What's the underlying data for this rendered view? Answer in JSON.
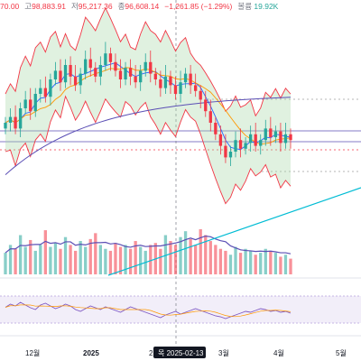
{
  "header": {
    "open_fragment": "70.00",
    "high_label": "고",
    "high": "98,883.91",
    "low_label": "저",
    "low": "95,217.36",
    "close": "96,608.14",
    "change": "−1,261.85 (−1.29%)",
    "volume_label": "볼륨",
    "volume": "19.92K"
  },
  "x_axis": {
    "labels": [
      "12월",
      "2025",
      "2",
      "3월",
      "4월",
      "5월"
    ],
    "cursor_label": "목 2025-02-13"
  },
  "colors": {
    "up": "#26a69a",
    "down": "#f23645",
    "bollinger": "#f23645",
    "bollinger_fill": "#a5d6a7",
    "ma_short": "#2962ff",
    "ma_mid": "#ff9800",
    "ma_long": "#5b4fb5",
    "trendline": "#00bcd4",
    "rsi_line": "#7e57c2"
  },
  "chart_data": {
    "type": "candlestick",
    "panes": [
      "price",
      "volume",
      "rsi"
    ],
    "price_series": [
      70,
      72,
      68,
      75,
      78,
      74,
      80,
      82,
      79,
      85,
      88,
      84,
      90,
      86,
      83,
      87,
      92,
      89,
      86,
      90,
      94,
      91,
      88,
      85,
      89,
      86,
      84,
      88,
      91,
      87,
      85,
      82,
      86,
      83,
      80,
      84,
      87,
      83,
      81,
      78,
      74,
      70,
      66,
      62,
      58,
      60,
      64,
      61,
      63,
      66,
      62,
      64,
      68,
      65,
      67,
      63,
      66,
      64
    ],
    "volume_series": [
      22,
      30,
      26,
      40,
      28,
      35,
      24,
      30,
      45,
      28,
      32,
      26,
      38,
      30,
      24,
      34,
      28,
      36,
      42,
      30,
      26,
      24,
      32,
      28,
      30,
      26,
      34,
      28,
      24,
      30,
      32,
      26,
      40,
      34,
      30,
      38,
      44,
      36,
      30,
      46,
      40,
      34,
      30,
      26,
      24,
      20,
      28,
      22,
      26,
      24,
      20,
      22,
      26,
      24,
      22,
      18,
      20,
      16
    ],
    "rsi_series": [
      55,
      62,
      58,
      66,
      60,
      54,
      50,
      60,
      64,
      58,
      52,
      56,
      62,
      58,
      50,
      46,
      52,
      58,
      54,
      50,
      56,
      52,
      48,
      44,
      50,
      56,
      52,
      48,
      44,
      40,
      36,
      32,
      38,
      42,
      46,
      40,
      44,
      48,
      52,
      48,
      44,
      40,
      36,
      34,
      30,
      34,
      38,
      42,
      46,
      44,
      48,
      52,
      50,
      46,
      48,
      44,
      46,
      42
    ],
    "price_range": [
      50,
      100
    ],
    "rsi_range": [
      0,
      100
    ]
  }
}
